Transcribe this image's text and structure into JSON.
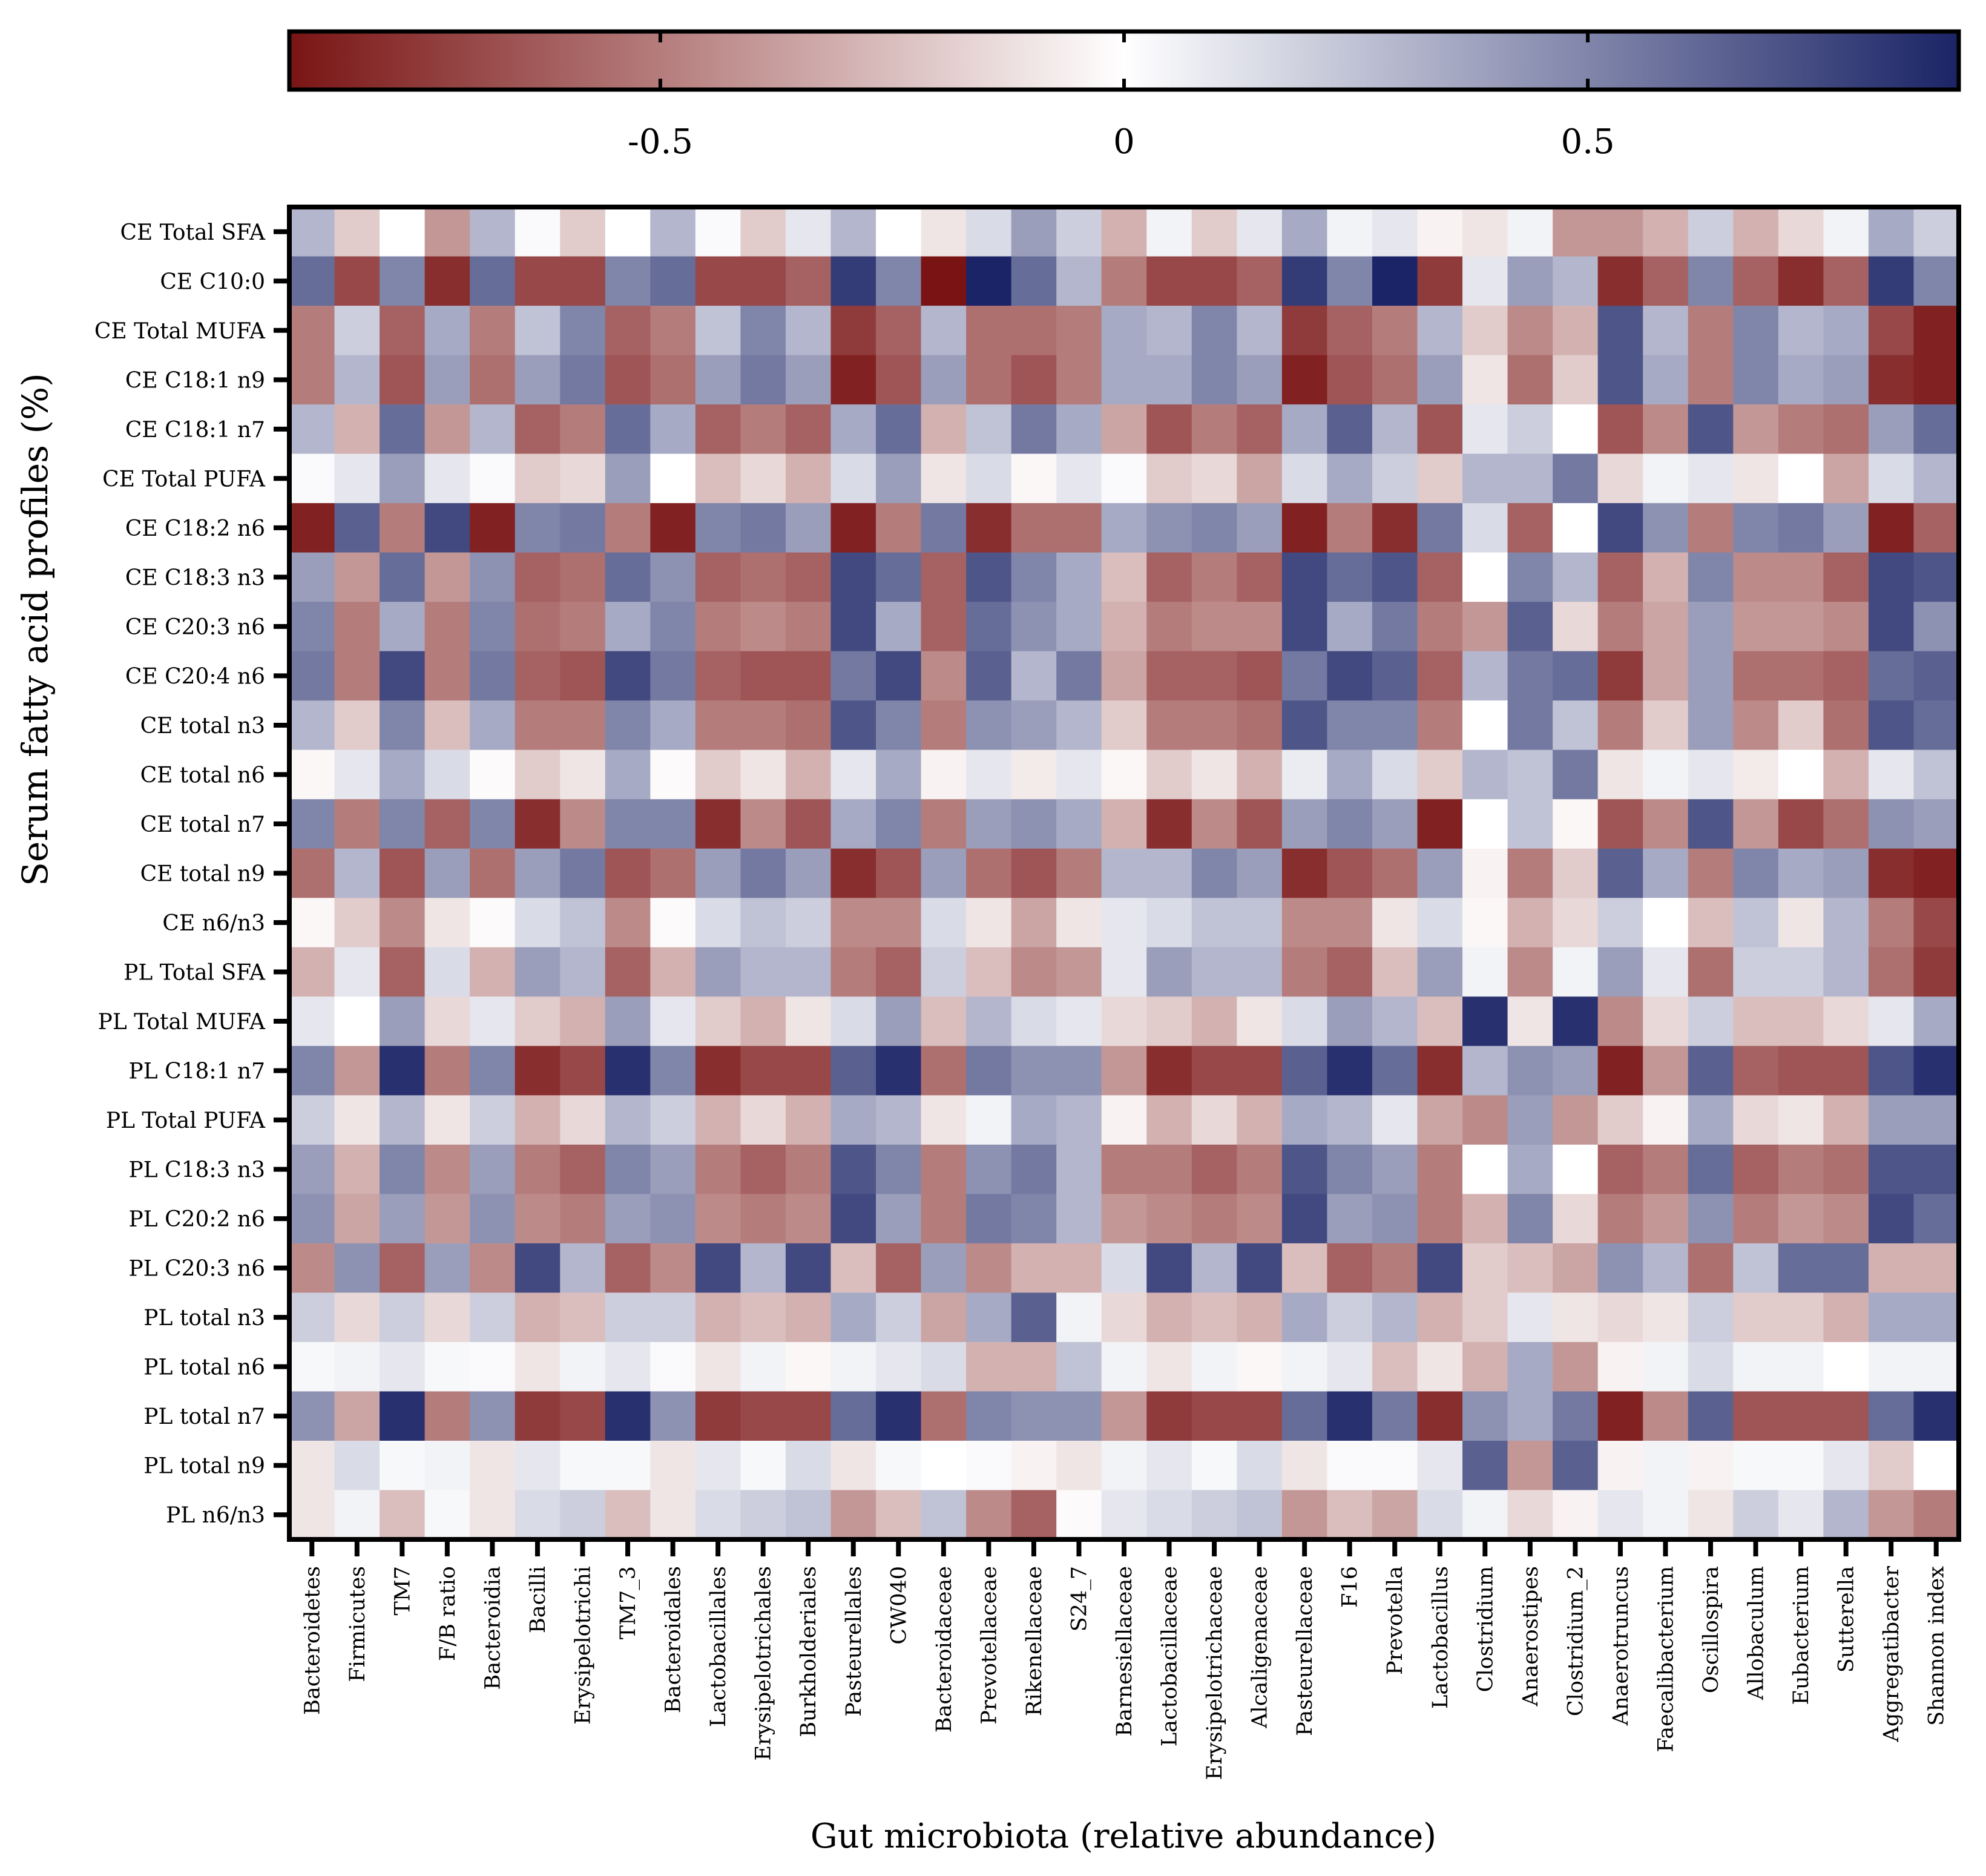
{
  "chart_data": {
    "type": "heatmap",
    "title": "",
    "xlabel": "Gut microbiota (relative abundance)",
    "ylabel": "Serum fatty acid profiles (%)",
    "colorbar": {
      "range": [
        -0.9,
        0.9
      ],
      "ticks": [
        {
          "value": -0.5,
          "label": "-0.5"
        },
        {
          "value": 0,
          "label": "0"
        },
        {
          "value": 0.5,
          "label": "0.5"
        }
      ],
      "low_color": "#7a1414",
      "mid_color": "#ffffff",
      "high_color": "#1b2466",
      "position": "top"
    },
    "columns": [
      "Bacteroidetes",
      "Firmicutes",
      "TM7",
      "F/B ratio",
      "Bacteroidia",
      "Bacilli",
      "Erysipelotrichi",
      "TM7_3",
      "Bacteroidales",
      "Lactobacillales",
      "Erysipelotrichales",
      "Burkholderiales",
      "Pasteurellales",
      "CW040",
      "Bacteroidaceae",
      "Prevotellaceae",
      "Rikenellaceae",
      "S24_7",
      "Barnesiellaceae",
      "Lactobacillaceae",
      "Erysipelotrichaceae",
      "Alcaligenaceae",
      "Pasteurellaceae",
      "F16",
      "Prevotella",
      "Lactobacillus",
      "Clostridium",
      "Anaerostipes",
      "Clostridium_2",
      "Anaerotruncus",
      "Faecalibacterium",
      "Oscillospira",
      "Allobaculum",
      "Eubacterium",
      "Sutterella",
      "Aggregatibacter",
      "Shannon index"
    ],
    "rows": [
      "CE Total SFA",
      "CE C10:0",
      "CE Total MUFA",
      "CE C18:1 n9",
      "CE C18:1 n7",
      "CE Total PUFA",
      "CE C18:2 n6",
      "CE C18:3 n3",
      "CE C20:3 n6",
      "CE C20:4 n6",
      "CE total n3",
      "CE total n6",
      "CE total n7",
      "CE total n9",
      "CE n6/n3",
      "PL Total SFA",
      "PL Total MUFA",
      "PL C18:1 n7",
      "PL Total PUFA",
      "PL C18:3 n3",
      "PL C20:2 n6",
      "PL C20:3 n6",
      "PL total n3",
      "PL total n6",
      "PL total n7",
      "PL total n9",
      "PL n6/n3"
    ],
    "values": [
      [
        0.3,
        -0.2,
        0,
        -0.4,
        0.3,
        0.02,
        -0.2,
        0,
        0.3,
        0.02,
        -0.2,
        0.1,
        0.3,
        0,
        -0.1,
        0.15,
        0.4,
        0.2,
        -0.3,
        0.05,
        -0.2,
        0.1,
        0.35,
        0.05,
        0.1,
        -0.05,
        -0.1,
        0.05,
        -0.4,
        -0.4,
        -0.3,
        0.2,
        -0.3,
        -0.15,
        0.05,
        0.35,
        0.2
      ],
      [
        0.6,
        -0.7,
        0.5,
        -0.8,
        0.6,
        -0.7,
        -0.7,
        0.5,
        0.6,
        -0.7,
        -0.7,
        -0.6,
        0.8,
        0.5,
        -0.9,
        0.9,
        0.6,
        0.3,
        -0.5,
        -0.7,
        -0.7,
        -0.6,
        0.8,
        0.5,
        0.9,
        -0.75,
        0.1,
        0.4,
        0.3,
        -0.8,
        -0.6,
        0.5,
        -0.6,
        -0.8,
        -0.6,
        0.8,
        0.5
      ],
      [
        -0.5,
        0.2,
        -0.6,
        0.35,
        -0.5,
        0.25,
        0.5,
        -0.6,
        -0.5,
        0.25,
        0.5,
        0.3,
        -0.75,
        -0.6,
        0.3,
        -0.55,
        -0.55,
        -0.5,
        0.35,
        0.3,
        0.5,
        0.3,
        -0.75,
        -0.6,
        -0.5,
        0.3,
        -0.2,
        -0.45,
        -0.3,
        0.7,
        0.3,
        -0.5,
        0.5,
        0.3,
        0.35,
        -0.7,
        -0.85
      ],
      [
        -0.5,
        0.3,
        -0.65,
        0.4,
        -0.55,
        0.4,
        0.55,
        -0.65,
        -0.55,
        0.4,
        0.55,
        0.4,
        -0.85,
        -0.65,
        0.4,
        -0.55,
        -0.65,
        -0.5,
        0.35,
        0.35,
        0.5,
        0.4,
        -0.85,
        -0.65,
        -0.55,
        0.4,
        -0.1,
        -0.55,
        -0.2,
        0.7,
        0.35,
        -0.5,
        0.5,
        0.35,
        0.4,
        -0.8,
        -0.85
      ],
      [
        0.3,
        -0.3,
        0.6,
        -0.4,
        0.3,
        -0.6,
        -0.5,
        0.6,
        0.35,
        -0.6,
        -0.5,
        -0.6,
        0.35,
        0.6,
        -0.3,
        0.25,
        0.55,
        0.35,
        -0.35,
        -0.65,
        -0.5,
        -0.6,
        0.35,
        0.65,
        0.3,
        -0.65,
        0.1,
        0.2,
        0,
        -0.65,
        -0.45,
        0.7,
        -0.4,
        -0.5,
        -0.55,
        0.4,
        0.6
      ],
      [
        0.02,
        0.1,
        0.4,
        0.1,
        0.02,
        -0.2,
        -0.15,
        0.4,
        0,
        -0.25,
        -0.15,
        -0.3,
        0.15,
        0.4,
        -0.1,
        0.15,
        -0.03,
        0.1,
        0.02,
        -0.2,
        -0.15,
        -0.35,
        0.15,
        0.35,
        0.2,
        -0.2,
        0.3,
        0.3,
        0.55,
        -0.15,
        0.05,
        0.1,
        -0.1,
        0,
        -0.35,
        0.15,
        0.3
      ],
      [
        -0.85,
        0.65,
        -0.5,
        0.75,
        -0.85,
        0.5,
        0.55,
        -0.5,
        -0.85,
        0.5,
        0.55,
        0.4,
        -0.85,
        -0.5,
        0.55,
        -0.8,
        -0.55,
        -0.55,
        0.35,
        0.45,
        0.5,
        0.4,
        -0.85,
        -0.5,
        -0.8,
        0.55,
        0.15,
        -0.6,
        0,
        0.75,
        0.45,
        -0.5,
        0.5,
        0.55,
        0.4,
        -0.85,
        -0.6
      ],
      [
        0.4,
        -0.4,
        0.6,
        -0.4,
        0.45,
        -0.6,
        -0.55,
        0.6,
        0.45,
        -0.6,
        -0.55,
        -0.6,
        0.75,
        0.6,
        -0.6,
        0.7,
        0.5,
        0.35,
        -0.25,
        -0.6,
        -0.5,
        -0.6,
        0.75,
        0.6,
        0.7,
        -0.6,
        0,
        0.5,
        0.3,
        -0.6,
        -0.3,
        0.5,
        -0.45,
        -0.45,
        -0.6,
        0.75,
        0.7
      ],
      [
        0.5,
        -0.5,
        0.35,
        -0.5,
        0.5,
        -0.55,
        -0.5,
        0.35,
        0.5,
        -0.5,
        -0.45,
        -0.5,
        0.75,
        0.35,
        -0.6,
        0.6,
        0.45,
        0.35,
        -0.3,
        -0.5,
        -0.45,
        -0.45,
        0.75,
        0.35,
        0.55,
        -0.5,
        -0.4,
        0.65,
        -0.15,
        -0.5,
        -0.35,
        0.4,
        -0.4,
        -0.4,
        -0.45,
        0.75,
        0.45
      ],
      [
        0.55,
        -0.5,
        0.75,
        -0.5,
        0.55,
        -0.6,
        -0.65,
        0.75,
        0.55,
        -0.6,
        -0.65,
        -0.65,
        0.55,
        0.75,
        -0.45,
        0.65,
        0.3,
        0.55,
        -0.35,
        -0.6,
        -0.6,
        -0.65,
        0.55,
        0.75,
        0.65,
        -0.6,
        0.3,
        0.55,
        0.6,
        -0.75,
        -0.35,
        0.4,
        -0.55,
        -0.55,
        -0.6,
        0.6,
        0.65
      ],
      [
        0.3,
        -0.2,
        0.5,
        -0.25,
        0.35,
        -0.5,
        -0.5,
        0.5,
        0.35,
        -0.5,
        -0.5,
        -0.55,
        0.7,
        0.5,
        -0.5,
        0.45,
        0.4,
        0.3,
        -0.2,
        -0.5,
        -0.5,
        -0.55,
        0.7,
        0.5,
        0.5,
        -0.5,
        0,
        0.55,
        0.25,
        -0.5,
        -0.2,
        0.4,
        -0.45,
        -0.2,
        -0.55,
        0.7,
        0.6
      ],
      [
        -0.03,
        0.1,
        0.35,
        0.15,
        -0.02,
        -0.2,
        -0.1,
        0.35,
        -0.02,
        -0.2,
        -0.1,
        -0.3,
        0.1,
        0.35,
        -0.05,
        0.1,
        -0.08,
        0.1,
        -0.03,
        -0.2,
        -0.1,
        -0.3,
        0.08,
        0.35,
        0.15,
        -0.2,
        0.3,
        0.25,
        0.55,
        -0.1,
        0.05,
        0.1,
        -0.08,
        0,
        -0.3,
        0.1,
        0.25
      ],
      [
        0.5,
        -0.5,
        0.5,
        -0.6,
        0.5,
        -0.8,
        -0.45,
        0.5,
        0.5,
        -0.8,
        -0.45,
        -0.65,
        0.35,
        0.5,
        -0.5,
        0.4,
        0.45,
        0.35,
        -0.3,
        -0.8,
        -0.45,
        -0.65,
        0.4,
        0.5,
        0.4,
        -0.85,
        0,
        0.25,
        -0.03,
        -0.65,
        -0.45,
        0.7,
        -0.4,
        -0.7,
        -0.55,
        0.45,
        0.4
      ],
      [
        -0.55,
        0.3,
        -0.65,
        0.4,
        -0.55,
        0.4,
        0.55,
        -0.65,
        -0.55,
        0.4,
        0.55,
        0.4,
        -0.8,
        -0.65,
        0.4,
        -0.55,
        -0.65,
        -0.5,
        0.3,
        0.3,
        0.5,
        0.4,
        -0.8,
        -0.65,
        -0.55,
        0.4,
        -0.05,
        -0.5,
        -0.2,
        0.65,
        0.35,
        -0.5,
        0.5,
        0.35,
        0.4,
        -0.8,
        -0.85
      ],
      [
        -0.03,
        -0.2,
        -0.45,
        -0.1,
        -0.02,
        0.15,
        0.25,
        -0.45,
        -0.02,
        0.15,
        0.25,
        0.2,
        -0.45,
        -0.45,
        0.15,
        -0.1,
        -0.35,
        -0.1,
        0.1,
        0.15,
        0.25,
        0.25,
        -0.45,
        -0.45,
        -0.1,
        0.15,
        -0.03,
        -0.3,
        -0.15,
        0.2,
        0,
        -0.25,
        0.25,
        -0.1,
        0.3,
        -0.5,
        -0.7
      ],
      [
        -0.3,
        0.1,
        -0.6,
        0.15,
        -0.3,
        0.4,
        0.3,
        -0.6,
        -0.3,
        0.4,
        0.3,
        0.3,
        -0.5,
        -0.6,
        0.2,
        -0.25,
        -0.45,
        -0.4,
        0.1,
        0.4,
        0.3,
        0.3,
        -0.5,
        -0.6,
        -0.25,
        0.4,
        0.05,
        -0.45,
        0.05,
        0.4,
        0.1,
        -0.55,
        0.2,
        0.2,
        0.3,
        -0.55,
        -0.75
      ],
      [
        0.1,
        0,
        0.4,
        -0.15,
        0.1,
        -0.2,
        -0.3,
        0.4,
        0.1,
        -0.2,
        -0.3,
        -0.1,
        0.15,
        0.4,
        -0.25,
        0.3,
        0.15,
        0.1,
        -0.15,
        -0.2,
        -0.3,
        -0.1,
        0.15,
        0.4,
        0.3,
        -0.25,
        0.85,
        -0.1,
        0.85,
        -0.45,
        -0.15,
        0.2,
        -0.25,
        -0.25,
        -0.15,
        0.1,
        0.35
      ],
      [
        0.5,
        -0.4,
        0.85,
        -0.5,
        0.5,
        -0.8,
        -0.7,
        0.85,
        0.5,
        -0.8,
        -0.7,
        -0.7,
        0.65,
        0.85,
        -0.55,
        0.55,
        0.45,
        0.45,
        -0.4,
        -0.8,
        -0.7,
        -0.7,
        0.65,
        0.85,
        0.6,
        -0.8,
        0.3,
        0.45,
        0.4,
        -0.85,
        -0.4,
        0.65,
        -0.6,
        -0.65,
        -0.65,
        0.7,
        0.85
      ],
      [
        0.2,
        -0.1,
        0.3,
        -0.1,
        0.2,
        -0.3,
        -0.15,
        0.3,
        0.2,
        -0.3,
        -0.15,
        -0.3,
        0.35,
        0.3,
        -0.1,
        0.05,
        0.35,
        0.3,
        -0.05,
        -0.3,
        -0.15,
        -0.3,
        0.35,
        0.3,
        0.1,
        -0.35,
        -0.45,
        0.4,
        -0.4,
        -0.2,
        -0.05,
        0.35,
        -0.15,
        -0.1,
        -0.3,
        0.4,
        0.4
      ],
      [
        0.4,
        -0.3,
        0.5,
        -0.45,
        0.4,
        -0.5,
        -0.6,
        0.5,
        0.4,
        -0.5,
        -0.6,
        -0.5,
        0.7,
        0.5,
        -0.5,
        0.45,
        0.55,
        0.3,
        -0.5,
        -0.5,
        -0.6,
        -0.5,
        0.7,
        0.5,
        0.4,
        -0.5,
        0,
        0.35,
        0,
        -0.6,
        -0.5,
        0.6,
        -0.6,
        -0.5,
        -0.55,
        0.7,
        0.7
      ],
      [
        0.45,
        -0.35,
        0.4,
        -0.4,
        0.45,
        -0.45,
        -0.5,
        0.4,
        0.45,
        -0.45,
        -0.5,
        -0.45,
        0.75,
        0.4,
        -0.5,
        0.55,
        0.5,
        0.3,
        -0.4,
        -0.45,
        -0.5,
        -0.45,
        0.75,
        0.4,
        0.45,
        -0.5,
        -0.3,
        0.5,
        -0.15,
        -0.5,
        -0.4,
        0.45,
        -0.5,
        -0.4,
        -0.45,
        0.75,
        0.6
      ],
      [
        -0.45,
        0.45,
        -0.6,
        0.4,
        -0.45,
        0.75,
        0.3,
        -0.6,
        -0.45,
        0.75,
        0.3,
        0.75,
        -0.25,
        -0.6,
        0.4,
        -0.45,
        -0.3,
        -0.3,
        0.15,
        0.75,
        0.3,
        0.75,
        -0.25,
        -0.6,
        -0.5,
        0.75,
        -0.2,
        -0.25,
        -0.35,
        0.45,
        0.3,
        -0.55,
        0.25,
        0.6,
        0.6,
        -0.3,
        -0.3
      ],
      [
        0.2,
        -0.15,
        0.2,
        -0.15,
        0.2,
        -0.3,
        -0.25,
        0.2,
        0.2,
        -0.3,
        -0.25,
        -0.3,
        0.35,
        0.2,
        -0.35,
        0.35,
        0.65,
        0.05,
        -0.15,
        -0.3,
        -0.25,
        -0.3,
        0.35,
        0.2,
        0.3,
        -0.3,
        -0.2,
        0.1,
        -0.1,
        -0.15,
        -0.1,
        0.2,
        -0.2,
        -0.2,
        -0.3,
        0.35,
        0.35
      ],
      [
        0.03,
        0.05,
        0.1,
        0.03,
        0.02,
        -0.1,
        0.05,
        0.1,
        0.02,
        -0.1,
        0.05,
        -0.03,
        0.05,
        0.1,
        0.15,
        -0.3,
        -0.3,
        0.25,
        0.05,
        -0.1,
        0.05,
        -0.03,
        0.05,
        0.1,
        -0.25,
        -0.1,
        -0.3,
        0.35,
        -0.4,
        -0.05,
        0.05,
        0.15,
        0.05,
        0.05,
        0,
        0.05,
        0.05
      ],
      [
        0.45,
        -0.35,
        0.85,
        -0.5,
        0.45,
        -0.75,
        -0.7,
        0.85,
        0.45,
        -0.75,
        -0.7,
        -0.7,
        0.6,
        0.85,
        -0.55,
        0.5,
        0.45,
        0.45,
        -0.4,
        -0.75,
        -0.7,
        -0.7,
        0.6,
        0.85,
        0.55,
        -0.8,
        0.45,
        0.35,
        0.55,
        -0.85,
        -0.45,
        0.65,
        -0.65,
        -0.65,
        -0.65,
        0.6,
        0.85
      ],
      [
        -0.1,
        0.15,
        0.03,
        0.05,
        -0.1,
        0.1,
        0.03,
        0.03,
        -0.1,
        0.1,
        0.03,
        0.15,
        -0.1,
        0.03,
        0,
        0.02,
        -0.05,
        -0.1,
        0.05,
        0.1,
        0.03,
        0.15,
        -0.1,
        0.02,
        0.02,
        0.1,
        0.65,
        -0.4,
        0.65,
        -0.05,
        0.05,
        -0.05,
        0.03,
        0.03,
        0.1,
        -0.2,
        0
      ],
      [
        -0.1,
        0.05,
        -0.25,
        0.03,
        -0.1,
        0.15,
        0.2,
        -0.25,
        -0.1,
        0.15,
        0.2,
        0.25,
        -0.4,
        -0.25,
        0.25,
        -0.45,
        -0.6,
        -0.02,
        0.1,
        0.15,
        0.2,
        0.25,
        -0.4,
        -0.25,
        -0.35,
        0.15,
        0.05,
        -0.15,
        -0.05,
        0.1,
        0.05,
        -0.1,
        0.2,
        0.1,
        0.3,
        -0.4,
        -0.5
      ]
    ]
  }
}
